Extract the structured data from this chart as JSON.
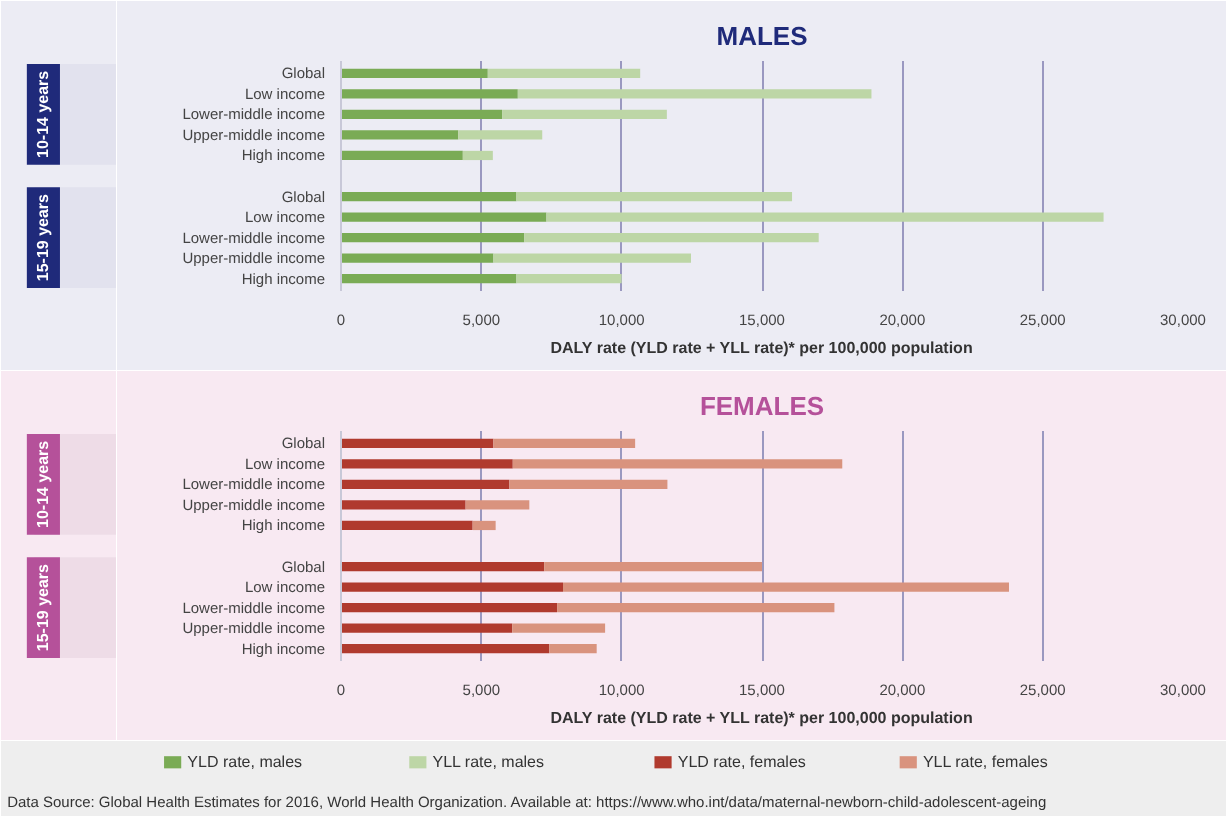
{
  "chart_data": [
    {
      "type": "bar",
      "orientation": "horizontal",
      "stacked": true,
      "title": "MALES",
      "xlabel": "DALY rate (YLD rate + YLL rate)* per 100,000 population",
      "categories": [
        "Global",
        "Low income",
        "Lower-middle income",
        "Upper-middle income",
        "High income",
        null,
        "Global",
        "Low income",
        "Lower-middle income",
        "Upper-middle income",
        "High income"
      ],
      "series": [
        {
          "name": "YLD rate, males",
          "color": "#7aab55",
          "values": [
            5230,
            6300,
            5740,
            4180,
            4340,
            null,
            6250,
            7320,
            6530,
            5430,
            6250
          ]
        },
        {
          "name": "YLL rate, males",
          "color": "#bdd6a6",
          "values": [
            5430,
            12600,
            5870,
            2990,
            1070,
            null,
            9820,
            19850,
            10490,
            7040,
            3750
          ]
        }
      ],
      "annotations": [
        "10-14 years",
        "15-19 years"
      ],
      "xlim": [
        0,
        30000
      ],
      "xticks": [
        {
          "value": 0,
          "label": "0"
        },
        {
          "value": 5000,
          "label": "5,000"
        },
        {
          "value": 10000,
          "label": "10,000"
        },
        {
          "value": 15000,
          "label": "15,000"
        },
        {
          "value": 20000,
          "label": "20,000"
        },
        {
          "value": 25000,
          "label": "25,000"
        },
        {
          "value": 30000,
          "label": "30,000"
        }
      ],
      "grid": "x",
      "legend": "bottom"
    },
    {
      "type": "bar",
      "orientation": "horizontal",
      "stacked": true,
      "title": "FEMALES",
      "xlabel": "DALY rate (YLD rate + YLL rate)* per 100,000 population",
      "categories": [
        "Global",
        "Low income",
        "Lower-middle income",
        "Upper-middle income",
        "High income",
        null,
        "Global",
        "Low income",
        "Lower-middle income",
        "Upper-middle income",
        "High income"
      ],
      "series": [
        {
          "name": "YLD rate, females",
          "color": "#b03a2e",
          "values": [
            5430,
            6120,
            6000,
            4440,
            4690,
            null,
            7240,
            7910,
            7700,
            6100,
            7420
          ]
        },
        {
          "name": "YLL rate, females",
          "color": "#d9937e",
          "values": [
            5050,
            11740,
            5630,
            2270,
            820,
            null,
            7760,
            15890,
            9880,
            3310,
            1690
          ]
        }
      ],
      "annotations": [
        "10-14 years",
        "15-19 years",
        "Data Source: Global Health Estimates for 2016, World Health Organization. Available at: https://www.who.int/data/maternal-newborn-child-adolescent-ageing"
      ],
      "xlim": [
        0,
        30000
      ],
      "xticks": [
        {
          "value": 0,
          "label": "0"
        },
        {
          "value": 5000,
          "label": "5,000"
        },
        {
          "value": 10000,
          "label": "10,000"
        },
        {
          "value": 15000,
          "label": "15,000"
        },
        {
          "value": 20000,
          "label": "20,000"
        },
        {
          "value": 25000,
          "label": "25,000"
        },
        {
          "value": 30000,
          "label": "30,000"
        }
      ],
      "grid": "x",
      "legend": "bottom"
    }
  ]
}
